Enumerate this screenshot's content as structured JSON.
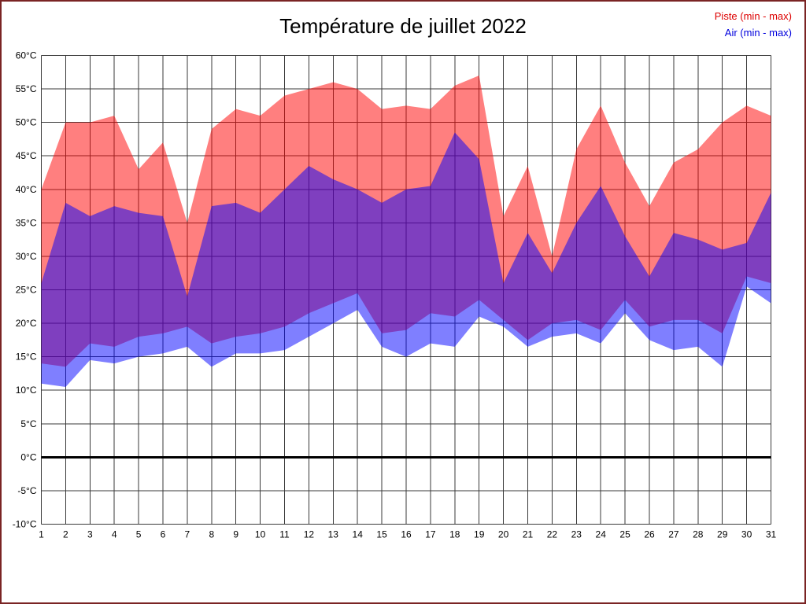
{
  "title": "Température de juillet 2022",
  "legend": {
    "piste_label": "Piste (min - max)",
    "piste_color": "#dd0000",
    "air_label": "Air (min - max)",
    "air_color": "#0000dd"
  },
  "chart_data": {
    "type": "area",
    "title": "Température de juillet 2022",
    "xlabel": "",
    "ylabel": "",
    "x": [
      1,
      2,
      3,
      4,
      5,
      6,
      7,
      8,
      9,
      10,
      11,
      12,
      13,
      14,
      15,
      16,
      17,
      18,
      19,
      20,
      21,
      22,
      23,
      24,
      25,
      26,
      27,
      28,
      29,
      30,
      31
    ],
    "ylim": [
      -10,
      60
    ],
    "ytick_step": 5,
    "ytick_suffix": "°C",
    "grid": true,
    "grid_color": "#3a3a3a",
    "zero_line": true,
    "zero_line_color": "#000000",
    "legend_position": "top-right",
    "series": [
      {
        "name": "Piste (min - max)",
        "key": "piste",
        "color": "#ff0000",
        "opacity": 0.5,
        "max": [
          40,
          50,
          50,
          51,
          43,
          47,
          35,
          49,
          52,
          51,
          54,
          55,
          56,
          55,
          52,
          52.5,
          52,
          55.5,
          57,
          36,
          43.5,
          30,
          46,
          52.5,
          44,
          37.5,
          44,
          46,
          50,
          52.5,
          51
        ],
        "min": [
          14,
          13.5,
          17,
          16.5,
          18,
          18.5,
          19.5,
          17,
          18,
          18.5,
          19.5,
          21.5,
          23,
          24.5,
          18.5,
          19,
          21.5,
          21,
          23.5,
          20.5,
          17.5,
          20,
          20.5,
          19,
          23.5,
          19.5,
          20.5,
          20.5,
          18.5,
          27,
          26
        ]
      },
      {
        "name": "Air (min - max)",
        "key": "air",
        "color": "#0000ff",
        "opacity": 0.5,
        "max": [
          26,
          38,
          36,
          37.5,
          36.5,
          36,
          24,
          37.5,
          38,
          36.5,
          40,
          43.5,
          41.5,
          40,
          38,
          40,
          40.5,
          48.5,
          44.5,
          26,
          33.5,
          27.5,
          35,
          40.5,
          33,
          27,
          33.5,
          32.5,
          31,
          32,
          39.5
        ],
        "min": [
          11,
          10.5,
          14.5,
          14,
          15,
          15.5,
          16.5,
          13.5,
          15.5,
          15.5,
          16,
          18,
          20,
          22,
          16.5,
          15,
          17,
          16.5,
          21,
          19.5,
          16.5,
          18,
          18.5,
          17,
          21.5,
          17.5,
          16,
          16.5,
          13.5,
          25.5,
          23
        ]
      }
    ]
  }
}
